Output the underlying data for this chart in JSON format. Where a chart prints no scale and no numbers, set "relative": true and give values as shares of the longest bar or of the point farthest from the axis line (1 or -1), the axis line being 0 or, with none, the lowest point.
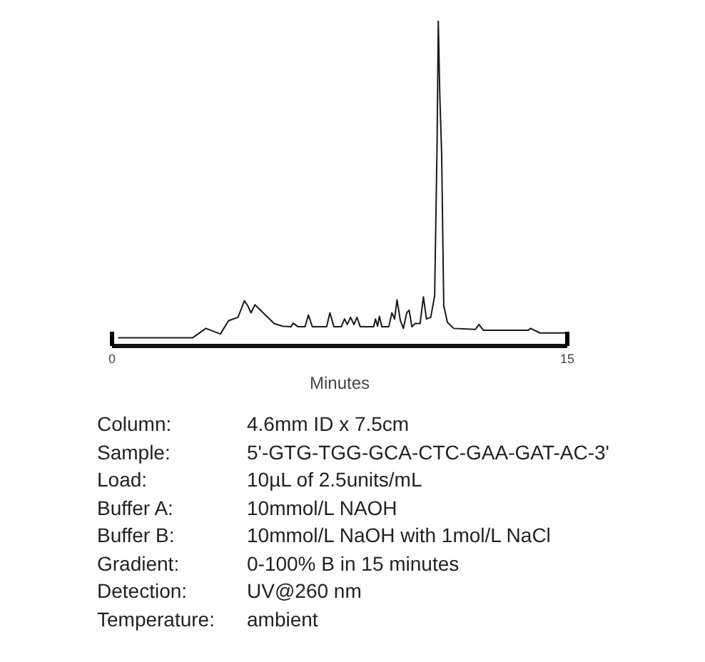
{
  "chart_data": {
    "type": "line",
    "relative": true,
    "xlabel": "Minutes",
    "xlim": [
      0,
      15
    ],
    "xticks": [
      0,
      15
    ],
    "grid": false,
    "marker": "none",
    "line_style": "solid",
    "series": [
      {
        "color": "#1a1a1a",
        "x": [
          0.2,
          2.65,
          3.09,
          3.57,
          3.84,
          4.15,
          4.36,
          4.47,
          4.58,
          4.71,
          4.86,
          5.34,
          5.62,
          5.89,
          5.97,
          6.13,
          6.36,
          6.47,
          6.6,
          7.07,
          7.18,
          7.31,
          7.55,
          7.66,
          7.75,
          7.86,
          7.97,
          8.07,
          8.18,
          8.62,
          8.68,
          8.75,
          8.81,
          8.89,
          9.12,
          9.22,
          9.31,
          9.39,
          9.5,
          9.6,
          9.71,
          9.79,
          9.88,
          9.99,
          10.15,
          10.26,
          10.36,
          10.5,
          10.63,
          10.71,
          10.75,
          10.8,
          10.86,
          10.93,
          11.05,
          11.26,
          11.97,
          12.09,
          12.24,
          13.71,
          13.79,
          14.1,
          14.97
        ],
        "values": [
          0.025,
          0.025,
          0.054,
          0.037,
          0.078,
          0.088,
          0.139,
          0.124,
          0.102,
          0.127,
          0.113,
          0.069,
          0.061,
          0.059,
          0.07,
          0.059,
          0.059,
          0.095,
          0.059,
          0.059,
          0.102,
          0.059,
          0.059,
          0.083,
          0.066,
          0.088,
          0.066,
          0.088,
          0.059,
          0.059,
          0.083,
          0.061,
          0.091,
          0.059,
          0.059,
          0.102,
          0.083,
          0.142,
          0.078,
          0.054,
          0.102,
          0.11,
          0.059,
          0.069,
          0.069,
          0.151,
          0.083,
          0.088,
          0.154,
          0.622,
          1,
          0.769,
          0.593,
          0.124,
          0.073,
          0.054,
          0.051,
          0.066,
          0.048,
          0.048,
          0.054,
          0.04,
          0.04
        ]
      }
    ],
    "annotations": [
      "Column: 4.6mm ID x 7.5cm",
      "Sample: 5'-GTG-TGG-GCA-CTC-GAA-GAT-AC-3'",
      "Load: 10µL of 2.5units/mL",
      "Buffer A: 10mmol/L NAOH",
      "Buffer B: 10mmol/L NaOH with 1mol/L NaCl",
      "Gradient: 0-100% B in 15 minutes",
      "Detection: UV@260 nm",
      "Temperature: ambient"
    ]
  }
}
